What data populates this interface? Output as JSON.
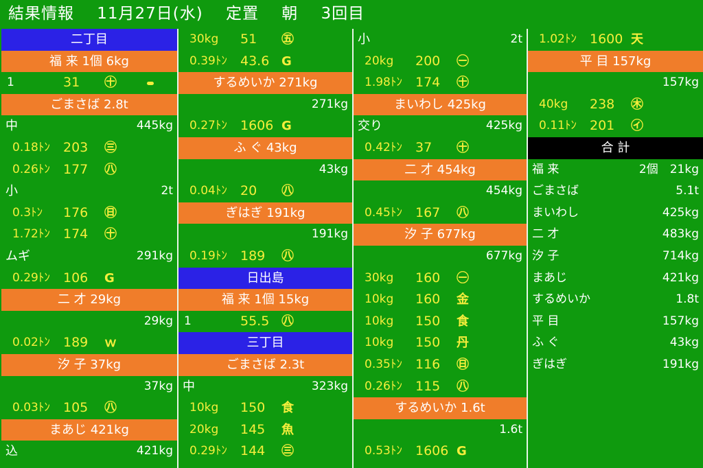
{
  "header": {
    "title": "結果情報",
    "date": "11月27日(水)",
    "type": "定置",
    "time": "朝",
    "round": "3回目"
  },
  "columns": [
    [
      {
        "kind": "cat",
        "color": "blue",
        "text": "二丁目"
      },
      {
        "kind": "cat",
        "color": "orange",
        "text": "福 来 1個 6kg"
      },
      {
        "kind": "entry",
        "mixed": true,
        "w": "1",
        "p": "31",
        "m": "㊉"
      },
      {
        "kind": "cat",
        "color": "orange",
        "text": "ごまさば 2.8t"
      },
      {
        "kind": "sub",
        "l": "中",
        "r": "445kg"
      },
      {
        "kind": "entry",
        "w": "0.18ﾄﾝ",
        "p": "203",
        "m": "㊂"
      },
      {
        "kind": "entry",
        "w": "0.26ﾄﾝ",
        "p": "177",
        "m": "㊇"
      },
      {
        "kind": "sub",
        "l": "小",
        "r": "2t"
      },
      {
        "kind": "entry",
        "w": "0.3ﾄﾝ",
        "p": "176",
        "m": "㊐"
      },
      {
        "kind": "entry",
        "w": "1.72ﾄﾝ",
        "p": "174",
        "m": "㊉"
      },
      {
        "kind": "sub",
        "l": "ムギ",
        "r": "291kg"
      },
      {
        "kind": "entry",
        "w": "0.29ﾄﾝ",
        "p": "106",
        "m": "G"
      },
      {
        "kind": "cat",
        "color": "orange",
        "text": "二 才 29kg"
      },
      {
        "kind": "sub",
        "l": "",
        "r": "29kg"
      },
      {
        "kind": "entry",
        "w": "0.02ﾄﾝ",
        "p": "189",
        "m": "ｗ"
      },
      {
        "kind": "cat",
        "color": "orange",
        "text": "汐 子 37kg"
      },
      {
        "kind": "sub",
        "l": "",
        "r": "37kg"
      },
      {
        "kind": "entry",
        "w": "0.03ﾄﾝ",
        "p": "105",
        "m": "㊇"
      },
      {
        "kind": "cat",
        "color": "orange",
        "text": "まあじ 421kg"
      },
      {
        "kind": "sub",
        "l": "込",
        "r": "421kg"
      }
    ],
    [
      {
        "kind": "entry",
        "w": "30kg",
        "p": "51",
        "m": "㊄"
      },
      {
        "kind": "entry",
        "w": "0.39ﾄﾝ",
        "p": "43.6",
        "m": "G"
      },
      {
        "kind": "cat",
        "color": "orange",
        "text": "するめいか 271kg"
      },
      {
        "kind": "sub",
        "l": "",
        "r": "271kg"
      },
      {
        "kind": "entry",
        "w": "0.27ﾄﾝ",
        "p": "1606",
        "m": "G"
      },
      {
        "kind": "cat",
        "color": "orange",
        "text": "ふ ぐ 43kg"
      },
      {
        "kind": "sub",
        "l": "",
        "r": "43kg"
      },
      {
        "kind": "entry",
        "w": "0.04ﾄﾝ",
        "p": "20",
        "m": "㊇"
      },
      {
        "kind": "cat",
        "color": "orange",
        "text": "ぎはぎ 191kg"
      },
      {
        "kind": "sub",
        "l": "",
        "r": "191kg"
      },
      {
        "kind": "entry",
        "w": "0.19ﾄﾝ",
        "p": "189",
        "m": "㊇"
      },
      {
        "kind": "cat",
        "color": "blue",
        "text": "日出島"
      },
      {
        "kind": "cat",
        "color": "orange",
        "text": "福 来 1個 15kg"
      },
      {
        "kind": "entry",
        "mixed": true,
        "w": "1",
        "p": "55.5",
        "m": "㊇"
      },
      {
        "kind": "cat",
        "color": "blue",
        "text": "三丁目"
      },
      {
        "kind": "cat",
        "color": "orange",
        "text": "ごまさば 2.3t"
      },
      {
        "kind": "sub",
        "l": "中",
        "r": "323kg"
      },
      {
        "kind": "entry",
        "w": "10kg",
        "p": "150",
        "m": "食"
      },
      {
        "kind": "entry",
        "w": "20kg",
        "p": "145",
        "m": "魚"
      },
      {
        "kind": "entry",
        "w": "0.29ﾄﾝ",
        "p": "144",
        "m": "㊂"
      }
    ],
    [
      {
        "kind": "sub",
        "l": "小",
        "r": "2t"
      },
      {
        "kind": "entry",
        "w": "20kg",
        "p": "200",
        "m": "㊀"
      },
      {
        "kind": "entry",
        "w": "1.98ﾄﾝ",
        "p": "174",
        "m": "㊉"
      },
      {
        "kind": "cat",
        "color": "orange",
        "text": "まいわし 425kg"
      },
      {
        "kind": "sub",
        "l": "交り",
        "r": "425kg"
      },
      {
        "kind": "entry",
        "w": "0.42ﾄﾝ",
        "p": "37",
        "m": "㊉"
      },
      {
        "kind": "cat",
        "color": "orange",
        "text": "二 才 454kg"
      },
      {
        "kind": "sub",
        "l": "",
        "r": "454kg"
      },
      {
        "kind": "entry",
        "w": "0.45ﾄﾝ",
        "p": "167",
        "m": "㊇"
      },
      {
        "kind": "cat",
        "color": "orange",
        "text": "汐 子 677kg"
      },
      {
        "kind": "sub",
        "l": "",
        "r": "677kg"
      },
      {
        "kind": "entry",
        "w": "30kg",
        "p": "160",
        "m": "㊀"
      },
      {
        "kind": "entry",
        "w": "10kg",
        "p": "160",
        "m": "金"
      },
      {
        "kind": "entry",
        "w": "10kg",
        "p": "150",
        "m": "食"
      },
      {
        "kind": "entry",
        "w": "10kg",
        "p": "150",
        "m": "丹"
      },
      {
        "kind": "entry",
        "w": "0.35ﾄﾝ",
        "p": "116",
        "m": "㊐"
      },
      {
        "kind": "entry",
        "w": "0.26ﾄﾝ",
        "p": "115",
        "m": "㊇"
      },
      {
        "kind": "cat",
        "color": "orange",
        "text": "するめいか 1.6t"
      },
      {
        "kind": "sub",
        "l": "",
        "r": "1.6t"
      },
      {
        "kind": "entry",
        "w": "0.53ﾄﾝ",
        "p": "1606",
        "m": "G"
      }
    ],
    [
      {
        "kind": "entry",
        "w": "1.02ﾄﾝ",
        "p": "1600",
        "m": "天"
      },
      {
        "kind": "cat",
        "color": "orange",
        "text": "平 目 157kg"
      },
      {
        "kind": "sub",
        "l": "",
        "r": "157kg"
      },
      {
        "kind": "entry",
        "w": "40kg",
        "p": "238",
        "m": "㊍"
      },
      {
        "kind": "entry",
        "w": "0.11ﾄﾝ",
        "p": "201",
        "m": "㋑"
      },
      {
        "kind": "cat",
        "color": "black",
        "text": "合 計"
      },
      {
        "kind": "sum",
        "l": "福 来",
        "r": "2個　21kg"
      },
      {
        "kind": "sum",
        "l": "ごまさば",
        "r": "5.1t"
      },
      {
        "kind": "sum",
        "l": "まいわし",
        "r": "425kg"
      },
      {
        "kind": "sum",
        "l": "二 才",
        "r": "483kg"
      },
      {
        "kind": "sum",
        "l": "汐 子",
        "r": "714kg"
      },
      {
        "kind": "sum",
        "l": "まあじ",
        "r": "421kg"
      },
      {
        "kind": "sum",
        "l": "するめいか",
        "r": "1.8t"
      },
      {
        "kind": "sum",
        "l": "平 目",
        "r": "157kg"
      },
      {
        "kind": "sum",
        "l": "ふ ぐ",
        "r": "43kg"
      },
      {
        "kind": "sum",
        "l": "ぎはぎ",
        "r": "191kg"
      }
    ]
  ]
}
